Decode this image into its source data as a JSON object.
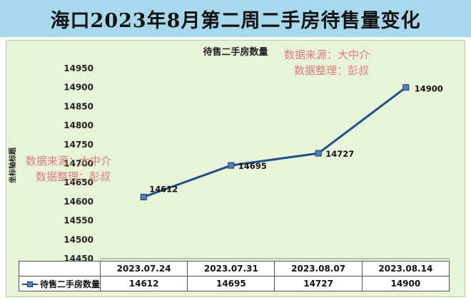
{
  "banner": {
    "title": "海口2023年8月第二周二手房待售量变化"
  },
  "watermarks": [
    {
      "line1": "数据来源：大中介",
      "line2": "数据整理：彭叔"
    },
    {
      "line1": "数据来源：大中介",
      "line2": "数据整理：彭叔"
    }
  ],
  "colors": {
    "line": "#1f4e8c",
    "marker_fill": "#4f81bd",
    "banner_bg": "#a6d9ec",
    "panel_bg": "#e8f4d8",
    "watermark": "#e06e6e"
  },
  "chart_data": {
    "type": "line",
    "title": "待售二手房数量",
    "xlabel": "",
    "ylabel": "坐标轴标题",
    "ylim": [
      14450,
      14950
    ],
    "yticks": [
      14450,
      14500,
      14550,
      14600,
      14650,
      14700,
      14750,
      14800,
      14850,
      14900,
      14950
    ],
    "categories": [
      "2023.07.24",
      "2023.07.31",
      "2023.08.07",
      "2023.08.14"
    ],
    "series": [
      {
        "name": "待售二手房数量",
        "values": [
          14612,
          14695,
          14727,
          14900
        ]
      }
    ],
    "grid": false,
    "legend": "data-table"
  },
  "data_table": {
    "row_label": "待售二手房数量",
    "values": [
      "14612",
      "14695",
      "14727",
      "14900"
    ]
  }
}
